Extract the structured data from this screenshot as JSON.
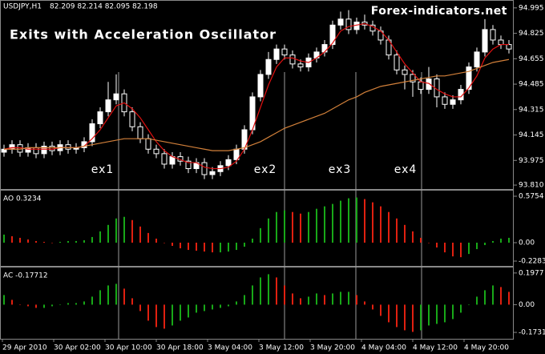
{
  "header": {
    "symbol": "USDJPY,H1",
    "quote": "82.209 82.214 82.095 82.198",
    "title": "Exits with Acceleration Oscillator",
    "watermark": "Forex-indicators.net"
  },
  "annotations": [
    "ex1",
    "ex2",
    "ex3",
    "ex4"
  ],
  "x_labels": [
    "29 Apr 2010",
    "30 Apr 02:00",
    "30 Apr 10:00",
    "30 Apr 18:00",
    "3 May 04:00",
    "3 May 12:00",
    "3 May 20:00",
    "4 May 04:00",
    "4 May 12:00",
    "4 May 20:00"
  ],
  "chart_data": [
    {
      "type": "candlestick",
      "up_color": "#ffffff",
      "down_color": "#000000",
      "wick_color": "#ffffff",
      "ylim": [
        93.789,
        95.037
      ],
      "yticks": [
        94.995,
        94.825,
        94.655,
        94.485,
        94.315,
        94.145,
        93.975,
        {
          "value": 93.81,
          "label": "93.810"
        }
      ],
      "open": [
        94.03,
        94.05,
        94.08,
        94.03,
        94.06,
        94.02,
        94.07,
        94.04,
        94.08,
        94.05,
        94.06,
        94.1,
        94.22,
        94.3,
        94.38,
        94.42,
        94.3,
        94.2,
        94.12,
        94.05,
        94.02,
        93.95,
        94.0,
        93.97,
        93.92,
        93.96,
        93.88,
        93.9,
        93.94,
        93.98,
        94.05,
        94.18,
        94.4,
        94.55,
        94.65,
        94.72,
        94.68,
        94.62,
        94.6,
        94.66,
        94.7,
        94.75,
        94.88,
        94.92,
        94.85,
        94.9,
        94.88,
        94.84,
        94.78,
        94.68,
        94.58,
        94.55,
        94.5,
        94.45,
        94.52,
        94.4,
        94.35,
        94.38,
        94.45,
        94.6,
        94.7,
        94.85,
        94.78,
        94.75
      ],
      "high": [
        94.08,
        94.11,
        94.11,
        94.09,
        94.09,
        94.1,
        94.1,
        94.11,
        94.11,
        94.09,
        94.13,
        94.25,
        94.33,
        94.5,
        94.55,
        94.45,
        94.33,
        94.23,
        94.15,
        94.08,
        94.05,
        94.03,
        94.03,
        94.0,
        93.99,
        93.99,
        93.93,
        93.97,
        94.01,
        94.08,
        94.21,
        94.43,
        94.58,
        94.7,
        94.75,
        94.75,
        94.71,
        94.65,
        94.69,
        94.73,
        94.78,
        94.91,
        94.97,
        94.98,
        94.93,
        94.95,
        94.91,
        94.87,
        94.81,
        94.71,
        94.61,
        94.58,
        94.53,
        94.6,
        94.55,
        94.43,
        94.41,
        94.48,
        94.63,
        94.73,
        94.92,
        94.88,
        94.81,
        94.78
      ],
      "low": [
        94.0,
        94.02,
        94.0,
        94.0,
        93.99,
        93.99,
        94.01,
        94.01,
        94.02,
        94.02,
        94.03,
        94.07,
        94.19,
        94.27,
        94.35,
        94.27,
        94.17,
        94.09,
        94.02,
        93.99,
        93.92,
        93.92,
        93.94,
        93.89,
        93.89,
        93.85,
        93.85,
        93.87,
        93.91,
        93.95,
        94.02,
        94.15,
        94.37,
        94.52,
        94.62,
        94.65,
        94.59,
        94.57,
        94.57,
        94.63,
        94.67,
        94.72,
        94.85,
        94.82,
        94.82,
        94.85,
        94.81,
        94.75,
        94.65,
        94.55,
        94.45,
        94.4,
        94.42,
        94.42,
        94.33,
        94.32,
        94.32,
        94.35,
        94.42,
        94.57,
        94.67,
        94.75,
        94.72,
        94.69
      ],
      "close": [
        94.05,
        94.08,
        94.03,
        94.06,
        94.02,
        94.07,
        94.04,
        94.08,
        94.05,
        94.06,
        94.1,
        94.22,
        94.3,
        94.38,
        94.42,
        94.3,
        94.2,
        94.12,
        94.05,
        94.02,
        93.95,
        94.0,
        93.97,
        93.92,
        93.96,
        93.88,
        93.9,
        93.94,
        93.98,
        94.05,
        94.18,
        94.4,
        94.55,
        94.65,
        94.72,
        94.68,
        94.62,
        94.6,
        94.66,
        94.7,
        94.75,
        94.88,
        94.92,
        94.85,
        94.9,
        94.88,
        94.84,
        94.78,
        94.68,
        94.58,
        94.55,
        94.5,
        94.45,
        94.52,
        94.4,
        94.35,
        94.38,
        94.45,
        94.6,
        94.7,
        94.85,
        94.78,
        94.75,
        94.72
      ],
      "series": [
        {
          "color": "#e01010",
          "values": [
            94.05,
            94.06,
            94.06,
            94.05,
            94.05,
            94.05,
            94.05,
            94.06,
            94.06,
            94.06,
            94.07,
            94.12,
            94.18,
            94.26,
            94.34,
            94.36,
            94.32,
            94.26,
            94.18,
            94.1,
            94.04,
            94.0,
            93.98,
            93.96,
            93.96,
            93.93,
            93.92,
            93.92,
            93.93,
            93.97,
            94.05,
            94.18,
            94.33,
            94.48,
            94.6,
            94.66,
            94.66,
            94.64,
            94.63,
            94.66,
            94.7,
            94.76,
            94.84,
            94.87,
            94.88,
            94.89,
            94.87,
            94.84,
            94.78,
            94.7,
            94.62,
            94.56,
            94.5,
            94.49,
            94.45,
            94.42,
            94.4,
            94.4,
            94.46,
            94.54,
            94.66,
            94.72,
            94.75,
            94.75
          ]
        },
        {
          "color": "#d2803a",
          "values": [
            94.05,
            94.05,
            94.05,
            94.06,
            94.06,
            94.06,
            94.06,
            94.06,
            94.06,
            94.06,
            94.07,
            94.08,
            94.09,
            94.1,
            94.11,
            94.12,
            94.12,
            94.12,
            94.12,
            94.11,
            94.1,
            94.09,
            94.08,
            94.07,
            94.06,
            94.05,
            94.04,
            94.04,
            94.04,
            94.05,
            94.06,
            94.08,
            94.1,
            94.13,
            94.16,
            94.19,
            94.21,
            94.23,
            94.25,
            94.27,
            94.29,
            94.32,
            94.35,
            94.38,
            94.4,
            94.43,
            94.45,
            94.47,
            94.48,
            94.49,
            94.5,
            94.51,
            94.52,
            94.53,
            94.54,
            94.54,
            94.55,
            94.56,
            94.57,
            94.59,
            94.61,
            94.63,
            94.64,
            94.65
          ]
        }
      ]
    },
    {
      "type": "histogram",
      "label": "AO 0.3234",
      "up_color": "#18a818",
      "down_color": "#e02010",
      "ylim": [
        -0.278,
        0.635
      ],
      "yticks": [
        0.5754,
        {
          "value": 0,
          "label": "0.00"
        },
        -0.2283
      ],
      "values": [
        0.1,
        0.08,
        0.06,
        0.04,
        0.02,
        0.01,
        0.0,
        0.01,
        0.02,
        0.02,
        0.03,
        0.07,
        0.14,
        0.22,
        0.3,
        0.32,
        0.28,
        0.2,
        0.12,
        0.05,
        0.0,
        -0.04,
        -0.07,
        -0.09,
        -0.1,
        -0.11,
        -0.12,
        -0.12,
        -0.11,
        -0.09,
        -0.05,
        0.05,
        0.18,
        0.3,
        0.38,
        0.4,
        0.38,
        0.36,
        0.38,
        0.42,
        0.45,
        0.48,
        0.52,
        0.55,
        0.56,
        0.54,
        0.5,
        0.45,
        0.38,
        0.3,
        0.22,
        0.14,
        0.06,
        0.0,
        -0.06,
        -0.12,
        -0.17,
        -0.18,
        -0.14,
        -0.08,
        -0.03,
        0.02,
        0.05,
        0.06
      ]
    },
    {
      "type": "histogram",
      "label": "AC -0.17712",
      "up_color": "#18a818",
      "down_color": "#e02010",
      "ylim": [
        -0.208,
        0.227
      ],
      "yticks": [
        0.1977,
        {
          "value": 0,
          "label": "0.00"
        },
        -0.17312
      ],
      "values": [
        0.06,
        0.03,
        0.0,
        -0.01,
        -0.02,
        -0.02,
        -0.01,
        0.0,
        0.01,
        0.01,
        0.02,
        0.05,
        0.09,
        0.12,
        0.13,
        0.1,
        0.04,
        -0.04,
        -0.1,
        -0.14,
        -0.15,
        -0.13,
        -0.1,
        -0.08,
        -0.05,
        -0.04,
        -0.03,
        -0.02,
        -0.01,
        0.02,
        0.06,
        0.12,
        0.17,
        0.19,
        0.17,
        0.12,
        0.07,
        0.04,
        0.05,
        0.07,
        0.06,
        0.07,
        0.08,
        0.08,
        0.06,
        0.02,
        -0.03,
        -0.07,
        -0.11,
        -0.14,
        -0.16,
        -0.17,
        -0.16,
        -0.13,
        -0.12,
        -0.11,
        -0.09,
        -0.05,
        0.0,
        0.05,
        0.09,
        0.12,
        0.11,
        0.08
      ]
    }
  ]
}
